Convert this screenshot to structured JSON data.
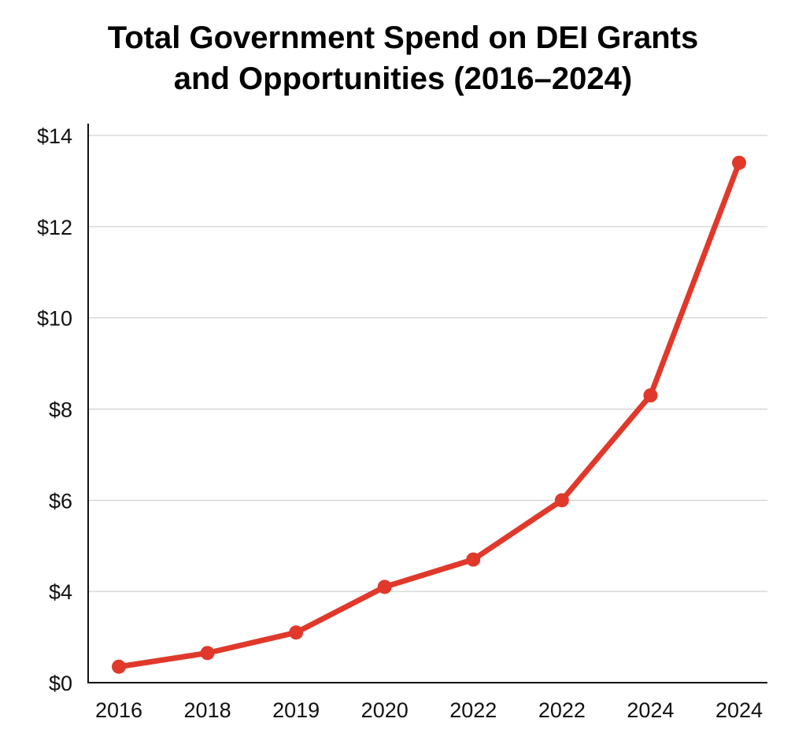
{
  "chart_data": {
    "type": "line",
    "title_line1": "Total Government Spend on DEI Grants",
    "title_line2": "and Opportunities (2016–2024)",
    "xlabel": "",
    "ylabel": "",
    "categories": [
      "2016",
      "2018",
      "2019",
      "2020",
      "2022",
      "2022",
      "2024",
      "2024"
    ],
    "series": [
      {
        "name": "Total spend",
        "color": "#e0392b",
        "values": [
          0.7,
          1.3,
          2.2,
          4.1,
          4.7,
          6.0,
          8.3,
          13.4
        ]
      }
    ],
    "y_ticks": [
      0,
      4,
      6,
      8,
      10,
      12,
      14
    ],
    "y_tick_labels": [
      "$0",
      "$4",
      "$6",
      "$8",
      "$10",
      "$12",
      "$14"
    ],
    "ylim": [
      0,
      14
    ],
    "grid": true,
    "legend": "none"
  }
}
